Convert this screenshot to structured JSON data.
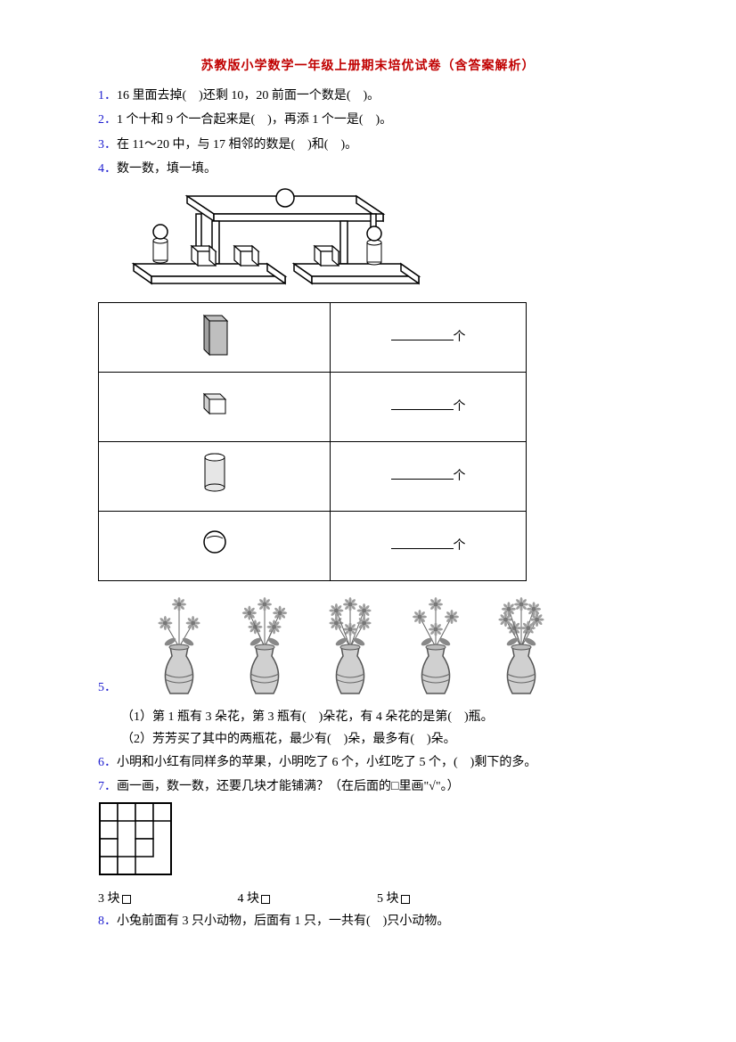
{
  "title_text": "苏教版小学数学一年级上册期末培优试卷（含答案解析）",
  "title_color": "#c00000",
  "qnum_color": "#2020d0",
  "q1": {
    "num": "1．",
    "text": "16 里面去掉(　)还剩 10，20 前面一个数是(　)。"
  },
  "q2": {
    "num": "2．",
    "text": "1 个十和 9 个一合起来是(　)，再添 1 个一是(　)。"
  },
  "q3": {
    "num": "3．",
    "text": "在 11～20 中，与 17 相邻的数是(　)和(　)。"
  },
  "q4": {
    "num": "4．",
    "text": "数一数，填一填。"
  },
  "table_unit": "个",
  "shapes": {
    "cuboid": {
      "fill": "#bfbfbf",
      "stroke": "#000000"
    },
    "cube": {
      "fill": "#e6e6e6",
      "stroke": "#000000"
    },
    "cylinder": {
      "fill": "#e6e6e6",
      "stroke": "#000000"
    },
    "sphere": {
      "fill": "#ffffff",
      "stroke": "#000000"
    }
  },
  "q5": {
    "num": "5．",
    "sub1": "（1）第 1 瓶有 3 朵花，第 3 瓶有(　)朵花，有 4 朵花的是第(　)瓶。",
    "sub2": "（2）芳芳买了其中的两瓶花，最少有(　)朵，最多有(　)朵。",
    "vase_counts": [
      3,
      5,
      6,
      4,
      7
    ],
    "flower_color": "#9e9e9e",
    "vase_fill": "#d0d0d0",
    "vase_stroke": "#555555"
  },
  "q6": {
    "num": "6．",
    "text": "小明和小红有同样多的苹果，小明吃了 6 个，小红吃了 5 个，(　)剩下的多。"
  },
  "q7": {
    "num": "7．",
    "text": "画一画，数一数，还要几块才能铺满？（在后面的□里画\"√\"。）",
    "grid": {
      "cols": 4,
      "rows": 4,
      "cell": 20,
      "filled": [
        [
          0,
          0
        ],
        [
          0,
          1
        ],
        [
          0,
          2
        ],
        [
          0,
          3
        ],
        [
          1,
          0
        ],
        [
          2,
          0
        ],
        [
          3,
          0
        ],
        [
          3,
          1
        ],
        [
          1,
          2
        ],
        [
          2,
          2
        ]
      ],
      "stroke": "#000000"
    },
    "choices": [
      "3 块",
      "4 块",
      "5 块"
    ]
  },
  "q8": {
    "num": "8．",
    "text": "小兔前面有 3 只小动物，后面有 1 只，一共有(　)只小动物。"
  }
}
